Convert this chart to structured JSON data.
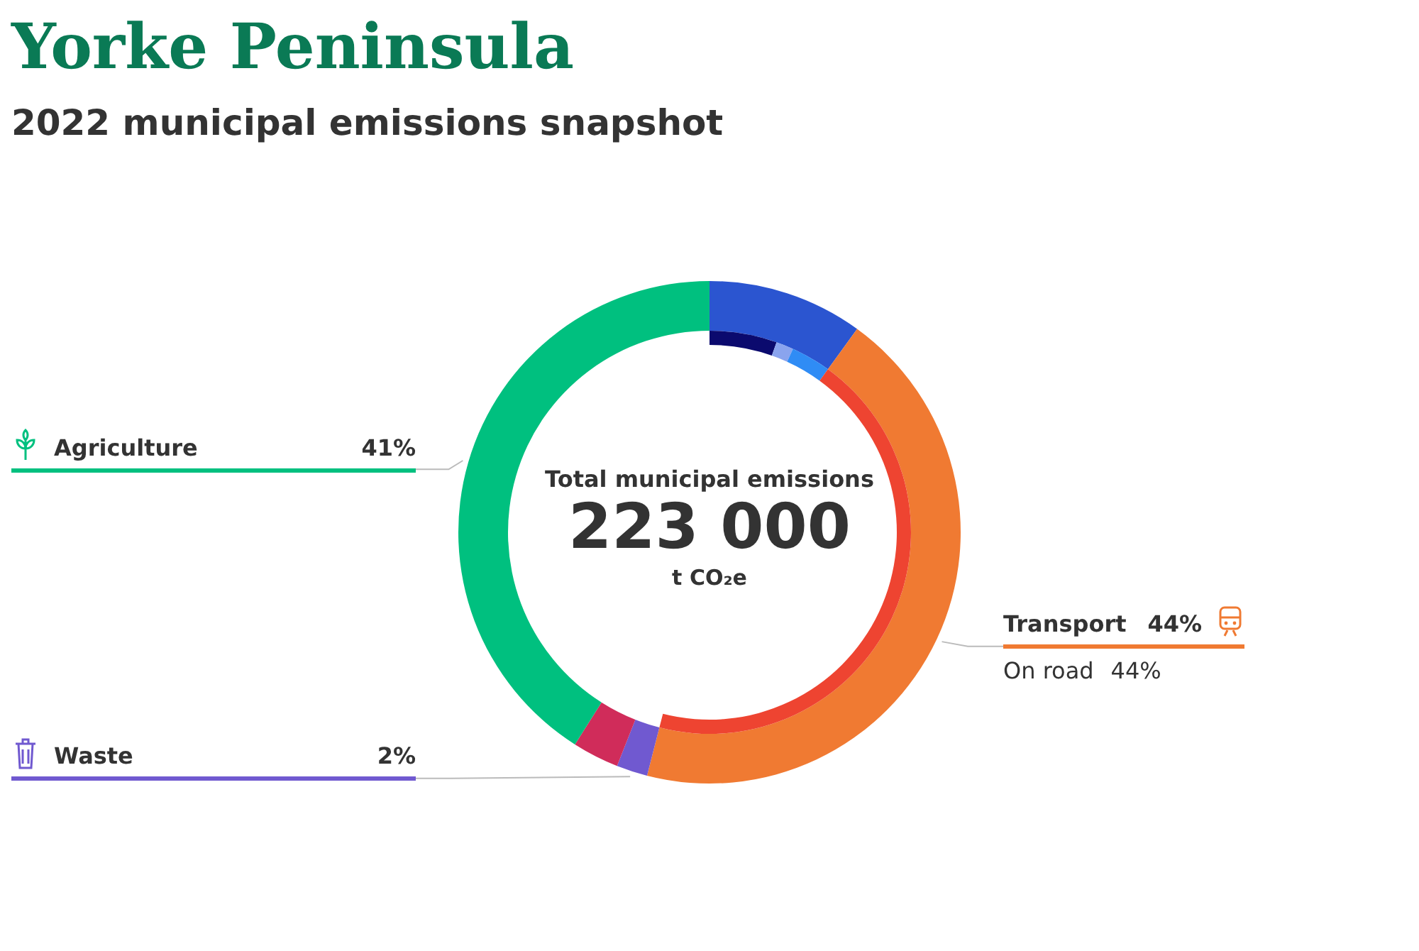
{
  "chart_data": [
    {
      "type": "donut",
      "title": "Yorke Peninsula",
      "subtitle": "2022 municipal emissions snapshot",
      "annotations": [
        "Total municipal emissions",
        "223 000",
        "t CO₂e"
      ],
      "legend": "left",
      "categories": [
        null,
        "Transport",
        "Waste",
        null,
        "Agriculture"
      ],
      "values": [
        10,
        44,
        2,
        3,
        41
      ],
      "value_labels": [
        null,
        "44%",
        "2%",
        null,
        "41%"
      ],
      "colors": [
        "#2b55d0",
        "#f07a32",
        "#7059d0",
        "#d02c5a",
        "#00c07f"
      ]
    },
    {
      "type": "donut",
      "categories": [
        null,
        null,
        null,
        "On road"
      ],
      "values": [
        5.4,
        1.4,
        3.2,
        44
      ],
      "value_labels": [
        null,
        null,
        null,
        "44%"
      ],
      "colors": [
        "#0b0a6e",
        "#8aa4ee",
        "#2f8cf5",
        "#ee4431"
      ]
    }
  ]
}
